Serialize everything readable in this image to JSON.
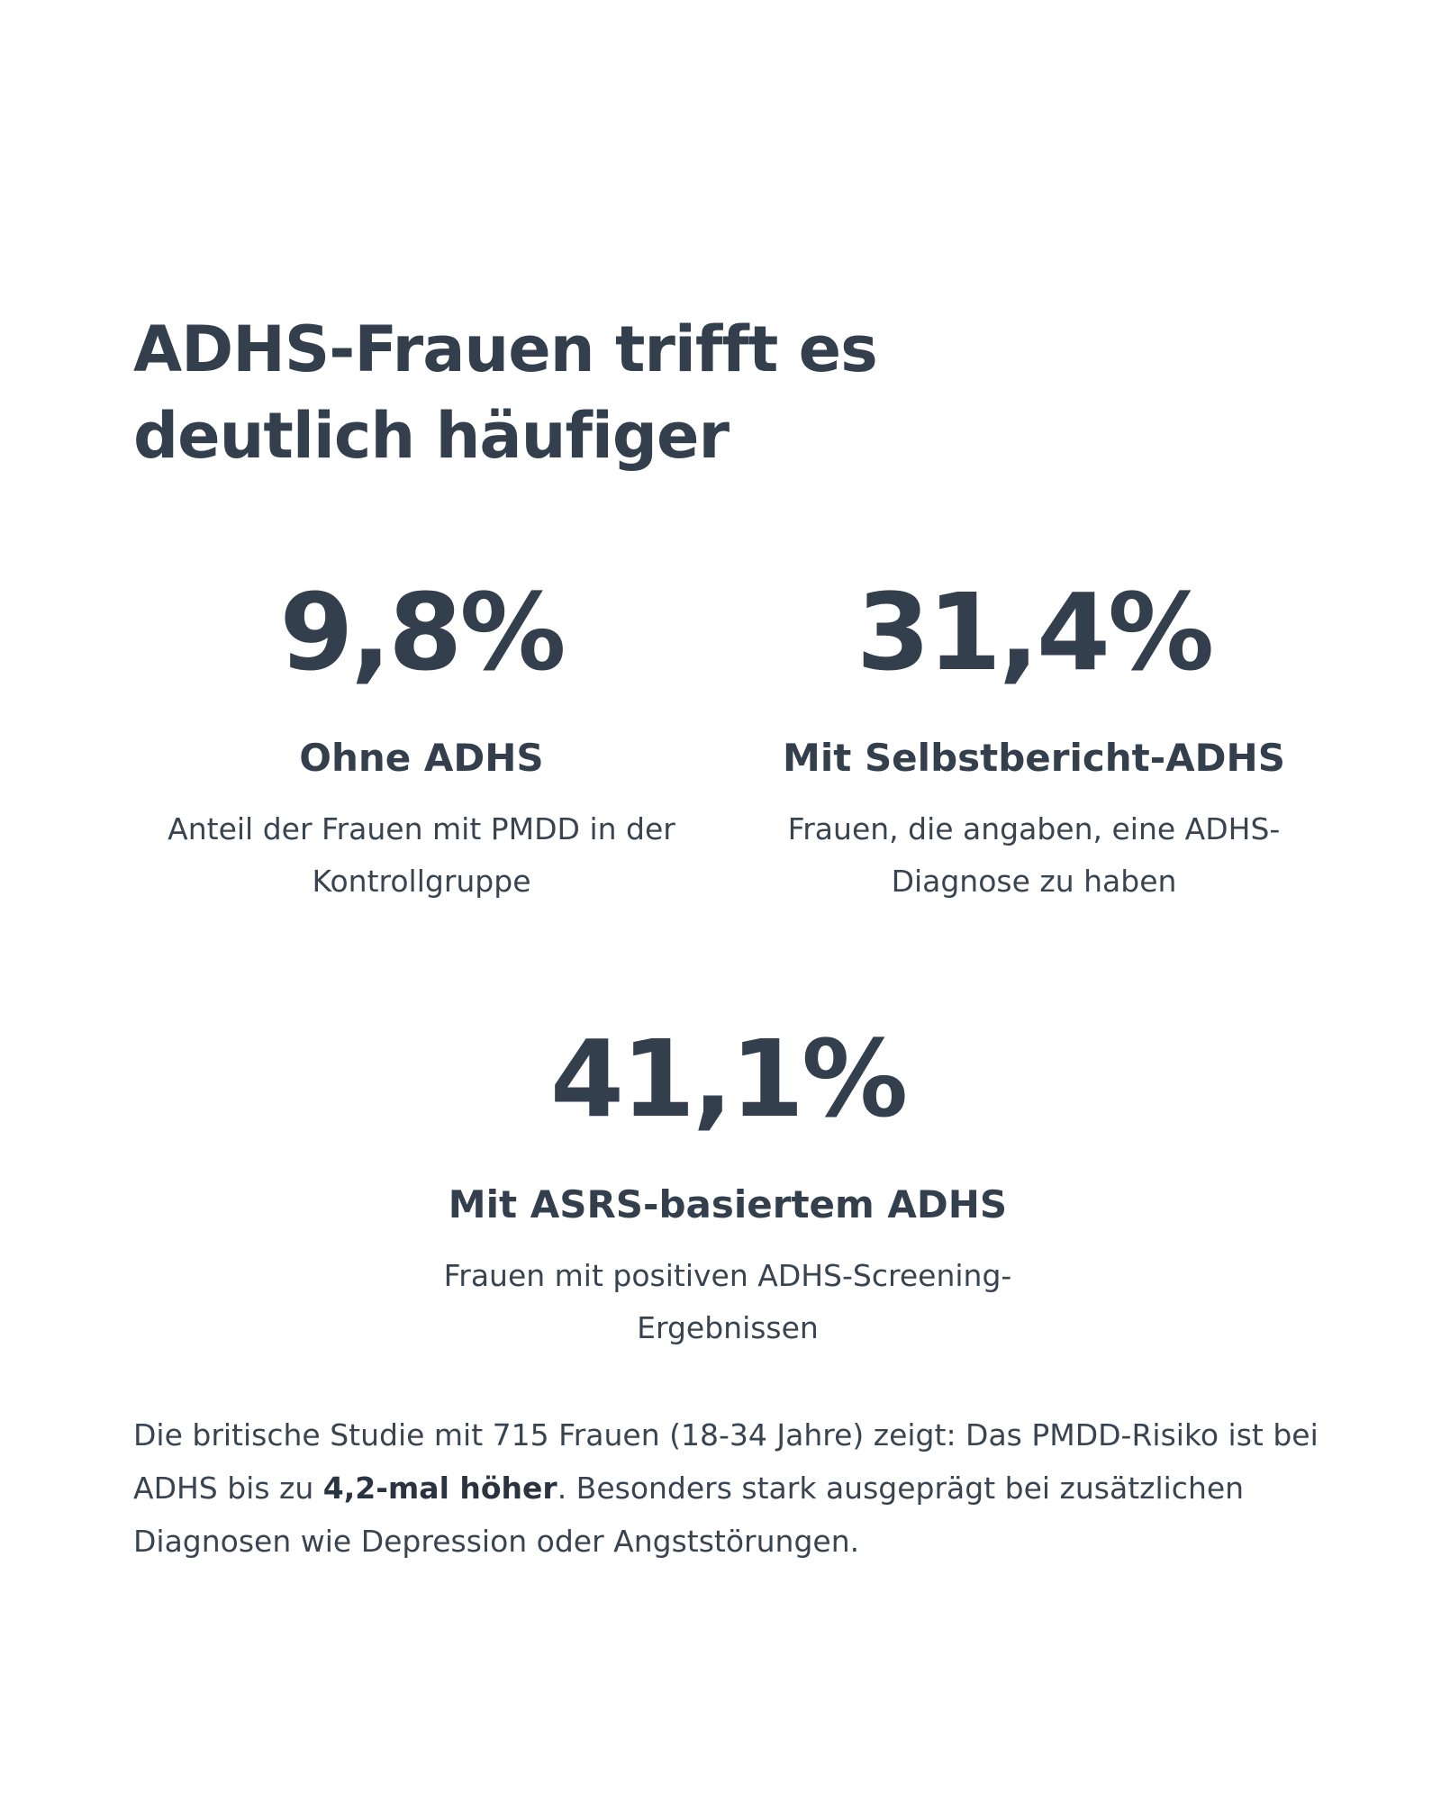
{
  "heading": {
    "title": "ADHS-Frauen trifft es deutlich häufiger"
  },
  "stats": [
    {
      "value": "9,8%",
      "label": "Ohne ADHS",
      "description": "Anteil der Frauen mit PMDD in der Kontrollgruppe"
    },
    {
      "value": "31,4%",
      "label": "Mit Selbstbericht-ADHS",
      "description": "Frauen, die angaben, eine ADHS-Diagnose zu haben"
    },
    {
      "value": "41,1%",
      "label": "Mit ASRS-basiertem ADHS",
      "description": "Frauen mit positiven ADHS-Screening-Ergebnissen"
    }
  ],
  "summary": {
    "before": "Die britische Studie mit 715 Frauen (18-34 Jahre) zeigt: Das PMDD-Risiko ist bei ADHS bis zu ",
    "highlight": "4,2-mal höher",
    "after": ". Besonders stark ausgeprägt bei zusätzlichen Diagnosen wie Depression oder Angststörungen."
  }
}
